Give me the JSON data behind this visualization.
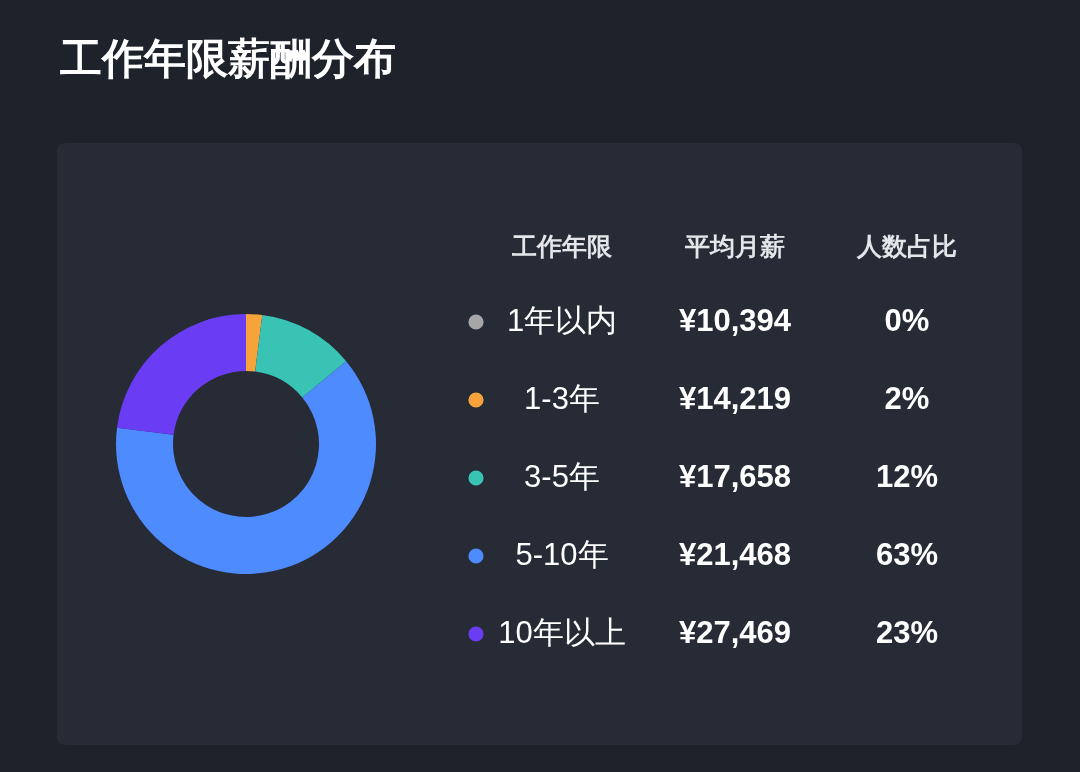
{
  "chart_data": {
    "type": "donut",
    "title": "工作年限薪酬分布",
    "legend_title": "工作年限",
    "categories": [
      "1年以内",
      "1-3年",
      "3-5年",
      "5-10年",
      "10年以上"
    ],
    "values": [
      0,
      2,
      12,
      63,
      23
    ],
    "value_labels": [
      "0%",
      "2%",
      "12%",
      "63%",
      "23%"
    ],
    "colors": [
      "#a6a6a6",
      "#f5a33a",
      "#38c3b4",
      "#4d8bff",
      "#6a3df5"
    ],
    "annotations": [
      "平均月薪",
      "人数占比",
      "¥10,394",
      "¥14,219",
      "¥17,658",
      "¥21,468",
      "¥27,469"
    ],
    "legend": "right"
  }
}
